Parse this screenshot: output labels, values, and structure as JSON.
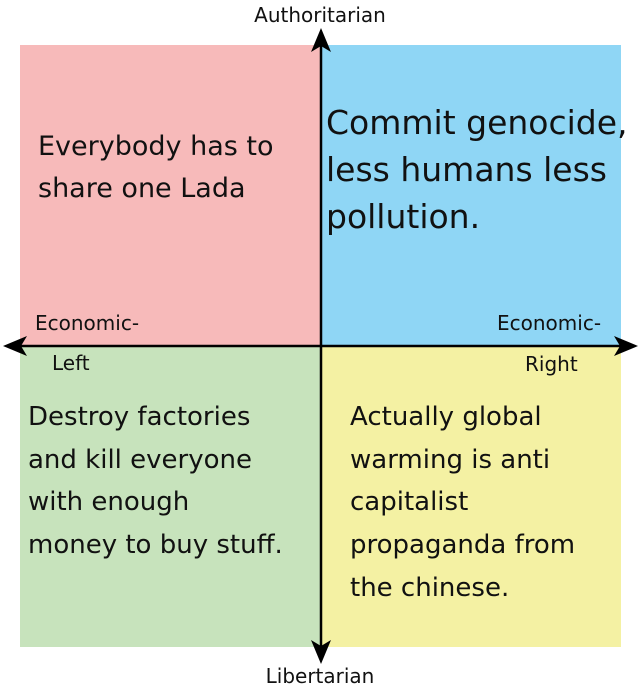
{
  "axes": {
    "top": "Authoritarian",
    "bottom": "Libertarian",
    "left_line1": "Economic-",
    "left_line2": "Left",
    "right_line1": "Economic-",
    "right_line2": "Right"
  },
  "quadrants": {
    "auth_left": "Everybody has to\nshare one Lada",
    "auth_right": "Commit genocide,\nless humans less\npollution.",
    "lib_left": "Destroy factories\nand kill everyone\nwith enough\nmoney to buy stuff.",
    "lib_right": "Actually global\nwarming is anti\ncapitalist\npropaganda from\nthe chinese."
  },
  "colors": {
    "auth_left": "#f7baba",
    "auth_right": "#8fd6f5",
    "lib_left": "#c7e3bc",
    "lib_right": "#f4f1a3",
    "axis": "#000000"
  }
}
